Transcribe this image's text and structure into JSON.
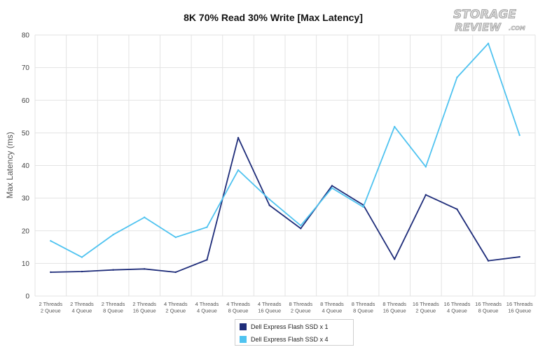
{
  "logo": {
    "line1": "STORAGE",
    "line2": "REVIEW",
    "suffix": ".COM"
  },
  "chart_data": {
    "type": "line",
    "title": "8K 70% Read 30% Write [Max Latency]",
    "xlabel": "",
    "ylabel": "Max Latency (ms)",
    "ylim": [
      0,
      80
    ],
    "yticks": [
      0,
      10,
      20,
      30,
      40,
      50,
      60,
      70,
      80
    ],
    "grid": true,
    "legend_position": "bottom-center",
    "categories": [
      [
        "2 Threads",
        "2 Queue"
      ],
      [
        "2 Threads",
        "4 Queue"
      ],
      [
        "2 Threads",
        "8 Queue"
      ],
      [
        "2 Threads",
        "16 Queue"
      ],
      [
        "4 Threads",
        "2 Queue"
      ],
      [
        "4 Threads",
        "4 Queue"
      ],
      [
        "4 Threads",
        "8 Queue"
      ],
      [
        "4 Threads",
        "16 Queue"
      ],
      [
        "8 Threads",
        "2 Queue"
      ],
      [
        "8 Threads",
        "4 Queue"
      ],
      [
        "8 Threads",
        "8 Queue"
      ],
      [
        "8 Threads",
        "16 Queue"
      ],
      [
        "16 Threads",
        "2 Queue"
      ],
      [
        "16 Threads",
        "4 Queue"
      ],
      [
        "16 Threads",
        "8 Queue"
      ],
      [
        "16 Threads",
        "16 Queue"
      ]
    ],
    "series": [
      {
        "name": "Dell Express Flash SSD x 1",
        "color": "#1f2d7a",
        "values": [
          7.3,
          7.5,
          8.0,
          8.3,
          7.3,
          11.1,
          48.5,
          27.8,
          20.7,
          33.8,
          27.9,
          11.3,
          31.0,
          26.6,
          10.8,
          12.0
        ]
      },
      {
        "name": "Dell Express Flash SSD x 4",
        "color": "#4fc3f0",
        "values": [
          16.9,
          11.9,
          18.8,
          24.1,
          18.0,
          21.1,
          38.6,
          29.6,
          21.6,
          33.1,
          27.3,
          51.9,
          39.6,
          67.0,
          77.4,
          49.3
        ]
      }
    ]
  }
}
